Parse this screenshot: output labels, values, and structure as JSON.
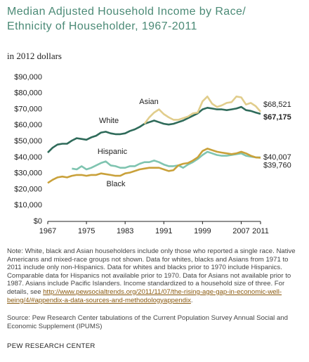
{
  "chart_data": {
    "type": "line",
    "title": "Median Adjusted Household Income by Race/ Ethnicity of Householder, 1967-2011",
    "subtitle": "in 2012 dollars",
    "x": [
      1967,
      1968,
      1969,
      1970,
      1971,
      1972,
      1973,
      1974,
      1975,
      1976,
      1977,
      1978,
      1979,
      1980,
      1981,
      1982,
      1983,
      1984,
      1985,
      1986,
      1987,
      1988,
      1989,
      1990,
      1991,
      1992,
      1993,
      1994,
      1995,
      1996,
      1997,
      1998,
      1999,
      2000,
      2001,
      2002,
      2003,
      2004,
      2005,
      2006,
      2007,
      2008,
      2009,
      2010,
      2011
    ],
    "series": [
      {
        "name": "White",
        "color": "#2f6b5a",
        "values": [
          43000,
          46000,
          48000,
          48500,
          48500,
          50500,
          52000,
          51500,
          51000,
          52500,
          53500,
          55500,
          56000,
          55000,
          54500,
          54500,
          55000,
          56500,
          57500,
          59000,
          61000,
          62000,
          63000,
          62000,
          61000,
          60500,
          61000,
          62000,
          63000,
          64500,
          66000,
          67500,
          70000,
          71000,
          70500,
          70000,
          70000,
          69500,
          70000,
          70500,
          71500,
          69500,
          69000,
          68000,
          67175
        ],
        "value_labels": [
          null,
          null,
          null,
          null,
          null,
          null,
          null,
          null,
          null,
          null,
          null,
          null,
          null,
          null,
          null,
          null,
          null,
          null,
          null,
          null,
          null,
          null,
          null,
          null,
          null,
          null,
          null,
          null,
          null,
          null,
          null,
          null,
          null,
          null,
          null,
          null,
          null,
          null,
          null,
          null,
          null,
          null,
          null,
          null,
          "$67,175"
        ]
      },
      {
        "name": "Asian",
        "color": "#e1cd8c",
        "values": [
          null,
          null,
          null,
          null,
          null,
          null,
          null,
          null,
          null,
          null,
          null,
          null,
          null,
          null,
          null,
          null,
          null,
          null,
          null,
          null,
          61000,
          65000,
          68000,
          70000,
          67000,
          65000,
          63500,
          63500,
          64500,
          65500,
          67500,
          68000,
          75000,
          78000,
          73500,
          71500,
          72500,
          74000,
          74500,
          78000,
          77500,
          73000,
          74000,
          72000,
          68521
        ],
        "value_labels": [
          null,
          null,
          null,
          null,
          null,
          null,
          null,
          null,
          null,
          null,
          null,
          null,
          null,
          null,
          null,
          null,
          null,
          null,
          null,
          null,
          null,
          null,
          null,
          null,
          null,
          null,
          null,
          null,
          null,
          null,
          null,
          null,
          null,
          null,
          null,
          null,
          null,
          null,
          null,
          null,
          null,
          null,
          null,
          null,
          "$68,521"
        ]
      },
      {
        "name": "Hispanic",
        "color": "#7fc4b0",
        "values": [
          null,
          null,
          null,
          null,
          null,
          33000,
          32500,
          34500,
          32500,
          33500,
          35000,
          36500,
          37500,
          35000,
          34500,
          33500,
          33500,
          34500,
          34500,
          36000,
          37000,
          37000,
          38000,
          37000,
          35500,
          34500,
          34500,
          35000,
          33500,
          35500,
          37000,
          39000,
          41500,
          43500,
          42500,
          41500,
          41000,
          41000,
          41500,
          42000,
          42500,
          41000,
          40500,
          40000,
          40007
        ],
        "value_labels": [
          null,
          null,
          null,
          null,
          null,
          null,
          null,
          null,
          null,
          null,
          null,
          null,
          null,
          null,
          null,
          null,
          null,
          null,
          null,
          null,
          null,
          null,
          null,
          null,
          null,
          null,
          null,
          null,
          null,
          null,
          null,
          null,
          null,
          null,
          null,
          null,
          null,
          null,
          null,
          null,
          null,
          null,
          null,
          null,
          "$40,007"
        ]
      },
      {
        "name": "Black",
        "color": "#c9a13a",
        "values": [
          24000,
          26000,
          27500,
          28000,
          27500,
          28500,
          29000,
          29000,
          28500,
          29000,
          29000,
          30000,
          29500,
          29000,
          28500,
          28500,
          30000,
          30500,
          31500,
          32500,
          33000,
          33500,
          33500,
          33500,
          32500,
          31500,
          32000,
          35000,
          36000,
          36500,
          38000,
          40000,
          44000,
          45500,
          44500,
          43500,
          43000,
          42500,
          42000,
          42500,
          43500,
          42500,
          41000,
          40000,
          39760
        ],
        "value_labels": [
          null,
          null,
          null,
          null,
          null,
          null,
          null,
          null,
          null,
          null,
          null,
          null,
          null,
          null,
          null,
          null,
          null,
          null,
          null,
          null,
          null,
          null,
          null,
          null,
          null,
          null,
          null,
          null,
          null,
          null,
          null,
          null,
          null,
          null,
          null,
          null,
          null,
          null,
          null,
          null,
          null,
          null,
          null,
          null,
          "$39,760"
        ]
      }
    ],
    "xlim": [
      1967,
      2011
    ],
    "xticks": [
      1967,
      1975,
      1983,
      1991,
      1999,
      2007,
      2011
    ],
    "ylim": [
      0,
      90000
    ],
    "yticks": [
      {
        "value": 0,
        "label": "$0"
      },
      {
        "value": 10000,
        "label": "$10,000"
      },
      {
        "value": 20000,
        "label": "$20,000"
      },
      {
        "value": 30000,
        "label": "$30,000"
      },
      {
        "value": 40000,
        "label": "$40,000"
      },
      {
        "value": 50000,
        "label": "$50,000"
      },
      {
        "value": 60000,
        "label": "$60,000"
      },
      {
        "value": 70000,
        "label": "$70,000"
      },
      {
        "value": 80000,
        "label": "$80,000"
      },
      {
        "value": 90000,
        "label": "$90,000"
      }
    ],
    "grid": false,
    "note": "Note: White, black and Asian householders include only those who reported a single race. Native Americans and mixed-race groups not shown. Data for whites, blacks and Asians from 1971 to 2011 include only non-Hispanics. Data for whites and blacks prior to 1970 include Hispanics. Comparable data for Hispanics not available prior to 1970. Data for Asians not available prior to 1987. Asians include Pacific Islanders. Income standardized to a household size of three. For details, see ",
    "note_link": "http://www.pewsocialtrends.org/2011/11/07/the-rising-age-gap-in-economic-well-being/4/#appendix-a-data-sources-and-methodologyappendix",
    "note_end": ".",
    "source": "Source: Pew Research Center tabulations of the Current Population Survey Annual Social and Economic Supplement (IPUMS)",
    "footer": "PEW RESEARCH CENTER"
  }
}
